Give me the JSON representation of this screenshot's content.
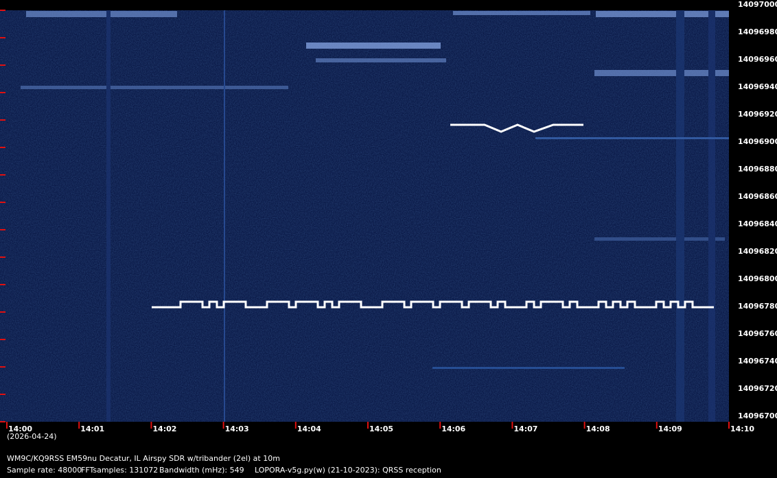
{
  "chart_data": {
    "type": "spectrogram",
    "categories": [
      "14:00",
      "14:01",
      "14:02",
      "14:03",
      "14:04",
      "14:05",
      "14:06",
      "14:07",
      "14:08",
      "14:09",
      "14:10"
    ],
    "date": "(2026-04-24)",
    "ylim": [
      14096700,
      14097000
    ],
    "yticks": [
      14097000,
      14096980,
      14096960,
      14096940,
      14096920,
      14096900,
      14096880,
      14096860,
      14096840,
      14096820,
      14096800,
      14096780,
      14096760,
      14096740,
      14096720,
      14096700
    ],
    "tick_color": "#e01010",
    "station": "WM9C/KQ9RSS EM59nu Decatur, IL  Airspy SDR w/tribander (2el) at 10m",
    "settings": [
      "Sample rate: 48000",
      "FFTsamples: 131072",
      "Bandwidth (mHz): 549"
    ],
    "software": "LOPORA-v5g.py(w) (21-10-2023): QRSS reception"
  }
}
